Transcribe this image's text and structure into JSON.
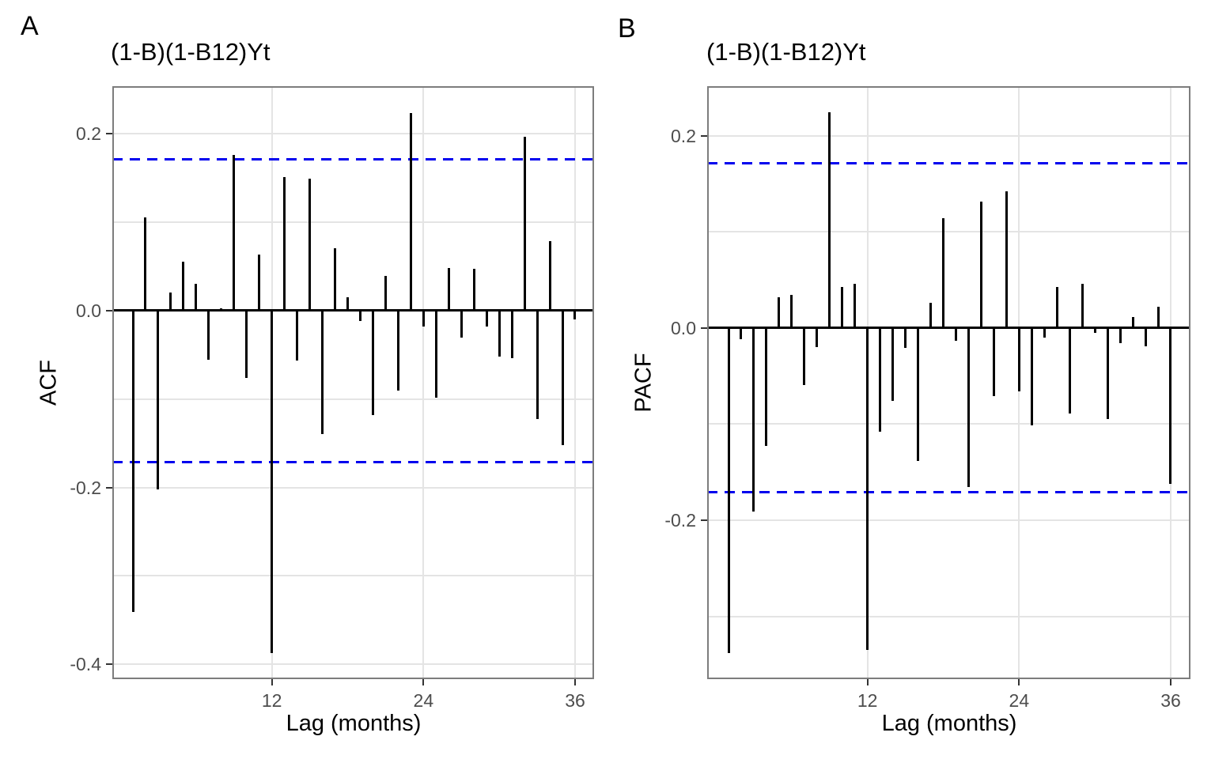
{
  "figure": {
    "panels": [
      {
        "letter": "A",
        "title": "(1-B)(1-B12)Yt",
        "ylabel": "ACF",
        "xlabel": "Lag (months)"
      },
      {
        "letter": "B",
        "title": "(1-B)(1-B12)Yt",
        "ylabel": "PACF",
        "xlabel": "Lag (months)"
      }
    ],
    "colors": {
      "bar": "#000000",
      "conf_band": "#0000ee",
      "grid": "#e4e4e4",
      "panel_border": "#7d7d7d",
      "tick_mark": "#333333",
      "tick_text": "#4d4d4d"
    }
  },
  "chart_data": [
    {
      "type": "bar",
      "title": "(1-B)(1-B12)Yt",
      "xlabel": "Lag (months)",
      "ylabel": "ACF",
      "x": [
        1,
        2,
        3,
        4,
        5,
        6,
        7,
        8,
        9,
        10,
        11,
        12,
        13,
        14,
        15,
        16,
        17,
        18,
        19,
        20,
        21,
        22,
        23,
        24,
        25,
        26,
        27,
        28,
        29,
        30,
        31,
        32,
        33,
        34,
        35,
        36
      ],
      "values": [
        -0.341,
        0.105,
        -0.202,
        0.02,
        0.055,
        0.03,
        -0.056,
        0.002,
        0.176,
        -0.076,
        0.063,
        -0.387,
        0.151,
        -0.057,
        0.149,
        -0.14,
        0.07,
        0.015,
        -0.012,
        -0.118,
        0.039,
        -0.091,
        0.223,
        -0.018,
        -0.099,
        0.048,
        -0.031,
        0.047,
        -0.018,
        -0.052,
        -0.054,
        0.196,
        -0.123,
        0.078,
        -0.152,
        -0.01
      ],
      "conf_bands": [
        0.171,
        -0.171
      ],
      "conf_band_style": "dashed-blue",
      "ylim": [
        -0.4166,
        0.2533
      ],
      "x_ticks": [
        12,
        24,
        36
      ],
      "y_ticks": [
        {
          "v": 0.2,
          "label": "0.2"
        },
        {
          "v": 0.0,
          "label": "0.0"
        },
        {
          "v": -0.2,
          "label": "-0.2"
        },
        {
          "v": -0.4,
          "label": "-0.4"
        }
      ],
      "y_gridlines": [
        0.2,
        0.1,
        -0.1,
        -0.2,
        -0.3,
        -0.4
      ],
      "grid": true,
      "legend": "none"
    },
    {
      "type": "bar",
      "title": "(1-B)(1-B12)Yt",
      "xlabel": "Lag (months)",
      "ylabel": "PACF",
      "x": [
        1,
        2,
        3,
        4,
        5,
        6,
        7,
        8,
        9,
        10,
        11,
        12,
        13,
        14,
        15,
        16,
        17,
        18,
        19,
        20,
        21,
        22,
        23,
        24,
        25,
        26,
        27,
        28,
        29,
        30,
        31,
        32,
        33,
        34,
        35,
        36
      ],
      "values": [
        -0.338,
        -0.012,
        -0.191,
        -0.123,
        0.032,
        0.034,
        -0.059,
        -0.02,
        0.224,
        0.043,
        0.046,
        -0.335,
        -0.108,
        -0.076,
        -0.021,
        -0.138,
        0.026,
        0.114,
        -0.013,
        -0.165,
        0.131,
        -0.071,
        0.142,
        -0.066,
        -0.101,
        -0.01,
        0.043,
        -0.089,
        0.046,
        -0.005,
        -0.095,
        -0.016,
        0.011,
        -0.019,
        0.022,
        -0.162
      ],
      "conf_bands": [
        0.171,
        -0.171
      ],
      "conf_band_style": "dashed-blue",
      "ylim": [
        -0.3651,
        0.2514
      ],
      "x_ticks": [
        12,
        24,
        36
      ],
      "y_ticks": [
        {
          "v": 0.2,
          "label": "0.2"
        },
        {
          "v": 0.0,
          "label": "0.0"
        },
        {
          "v": -0.2,
          "label": "-0.2"
        }
      ],
      "y_gridlines": [
        0.2,
        0.1,
        -0.1,
        -0.2,
        -0.3
      ],
      "grid": true,
      "legend": "none"
    }
  ]
}
